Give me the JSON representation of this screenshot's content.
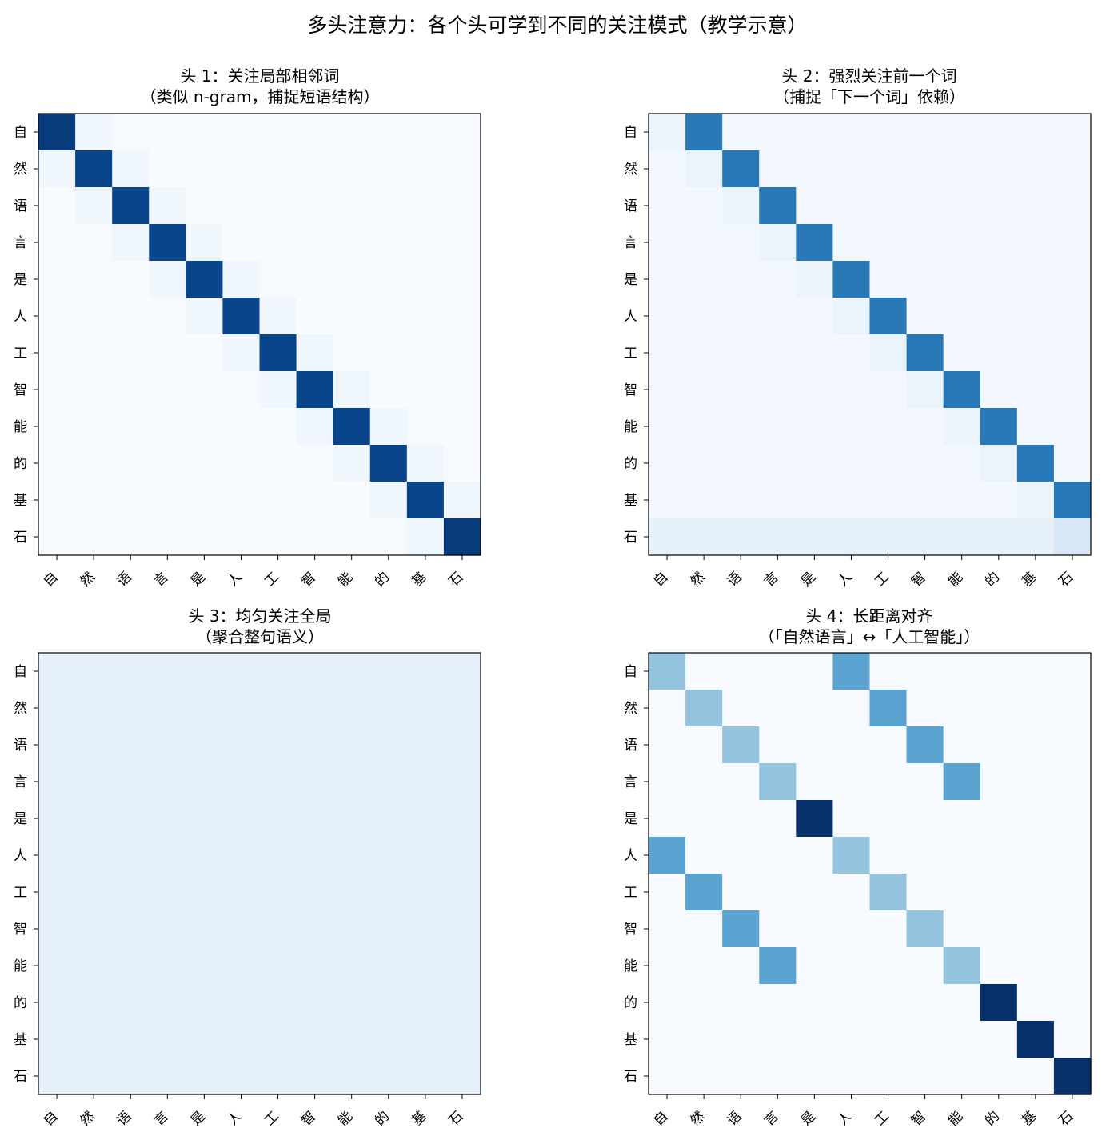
{
  "figure_title": "多头注意力：各个头可学到不同的关注模式（教学示意）",
  "chart_data": [
    {
      "type": "heatmap",
      "title": "头 1：关注局部相邻词",
      "subtitle": "（类似 n-gram，捕捉短语结构）",
      "colormap": "Blues",
      "vmin": 0,
      "vmax": 1,
      "x_labels": [
        "自",
        "然",
        "语",
        "言",
        "是",
        "人",
        "工",
        "智",
        "能",
        "的",
        "基",
        "石"
      ],
      "y_labels": [
        "自",
        "然",
        "语",
        "言",
        "是",
        "人",
        "工",
        "智",
        "能",
        "的",
        "基",
        "石"
      ],
      "matrix": [
        [
          0.96,
          0.04,
          0,
          0,
          0,
          0,
          0,
          0,
          0,
          0,
          0,
          0
        ],
        [
          0.04,
          0.92,
          0.04,
          0,
          0,
          0,
          0,
          0,
          0,
          0,
          0,
          0
        ],
        [
          0,
          0.04,
          0.92,
          0.04,
          0,
          0,
          0,
          0,
          0,
          0,
          0,
          0
        ],
        [
          0,
          0,
          0.04,
          0.92,
          0.04,
          0,
          0,
          0,
          0,
          0,
          0,
          0
        ],
        [
          0,
          0,
          0,
          0.04,
          0.92,
          0.04,
          0,
          0,
          0,
          0,
          0,
          0
        ],
        [
          0,
          0,
          0,
          0,
          0.04,
          0.92,
          0.04,
          0,
          0,
          0,
          0,
          0
        ],
        [
          0,
          0,
          0,
          0,
          0,
          0.04,
          0.92,
          0.04,
          0,
          0,
          0,
          0
        ],
        [
          0,
          0,
          0,
          0,
          0,
          0,
          0.04,
          0.92,
          0.04,
          0,
          0,
          0
        ],
        [
          0,
          0,
          0,
          0,
          0,
          0,
          0,
          0.04,
          0.92,
          0.04,
          0,
          0
        ],
        [
          0,
          0,
          0,
          0,
          0,
          0,
          0,
          0,
          0.04,
          0.92,
          0.04,
          0
        ],
        [
          0,
          0,
          0,
          0,
          0,
          0,
          0,
          0,
          0,
          0.04,
          0.92,
          0.04
        ],
        [
          0,
          0,
          0,
          0,
          0,
          0,
          0,
          0,
          0,
          0,
          0.04,
          0.96
        ]
      ]
    },
    {
      "type": "heatmap",
      "title": "头 2：强烈关注前一个词",
      "subtitle": "（捕捉「下一个词」依赖）",
      "colormap": "Blues",
      "vmin": 0,
      "vmax": 1,
      "x_labels": [
        "自",
        "然",
        "语",
        "言",
        "是",
        "人",
        "工",
        "智",
        "能",
        "的",
        "基",
        "石"
      ],
      "y_labels": [
        "自",
        "然",
        "语",
        "言",
        "是",
        "人",
        "工",
        "智",
        "能",
        "的",
        "基",
        "石"
      ],
      "matrix": [
        [
          0.06,
          0.72,
          0.02,
          0.02,
          0.02,
          0.02,
          0.02,
          0.02,
          0.02,
          0.02,
          0.02,
          0.02
        ],
        [
          0.02,
          0.06,
          0.72,
          0.02,
          0.02,
          0.02,
          0.02,
          0.02,
          0.02,
          0.02,
          0.02,
          0.02
        ],
        [
          0.02,
          0.02,
          0.06,
          0.72,
          0.02,
          0.02,
          0.02,
          0.02,
          0.02,
          0.02,
          0.02,
          0.02
        ],
        [
          0.02,
          0.02,
          0.02,
          0.06,
          0.72,
          0.02,
          0.02,
          0.02,
          0.02,
          0.02,
          0.02,
          0.02
        ],
        [
          0.02,
          0.02,
          0.02,
          0.02,
          0.06,
          0.72,
          0.02,
          0.02,
          0.02,
          0.02,
          0.02,
          0.02
        ],
        [
          0.02,
          0.02,
          0.02,
          0.02,
          0.02,
          0.06,
          0.72,
          0.02,
          0.02,
          0.02,
          0.02,
          0.02
        ],
        [
          0.02,
          0.02,
          0.02,
          0.02,
          0.02,
          0.02,
          0.06,
          0.72,
          0.02,
          0.02,
          0.02,
          0.02
        ],
        [
          0.02,
          0.02,
          0.02,
          0.02,
          0.02,
          0.02,
          0.02,
          0.06,
          0.72,
          0.02,
          0.02,
          0.02
        ],
        [
          0.02,
          0.02,
          0.02,
          0.02,
          0.02,
          0.02,
          0.02,
          0.02,
          0.06,
          0.72,
          0.02,
          0.02
        ],
        [
          0.02,
          0.02,
          0.02,
          0.02,
          0.02,
          0.02,
          0.02,
          0.02,
          0.02,
          0.06,
          0.72,
          0.02
        ],
        [
          0.02,
          0.02,
          0.02,
          0.02,
          0.02,
          0.02,
          0.02,
          0.02,
          0.02,
          0.02,
          0.06,
          0.72
        ],
        [
          0.08,
          0.08,
          0.08,
          0.08,
          0.08,
          0.08,
          0.08,
          0.08,
          0.08,
          0.08,
          0.08,
          0.16
        ]
      ]
    },
    {
      "type": "heatmap",
      "title": "头 3：均匀关注全局",
      "subtitle": "（聚合整句语义）",
      "colormap": "Blues",
      "vmin": 0,
      "vmax": 1,
      "x_labels": [
        "自",
        "然",
        "语",
        "言",
        "是",
        "人",
        "工",
        "智",
        "能",
        "的",
        "基",
        "石"
      ],
      "y_labels": [
        "自",
        "然",
        "语",
        "言",
        "是",
        "人",
        "工",
        "智",
        "能",
        "的",
        "基",
        "石"
      ],
      "matrix": [
        [
          0.083,
          0.083,
          0.083,
          0.083,
          0.083,
          0.083,
          0.083,
          0.083,
          0.083,
          0.083,
          0.083,
          0.083
        ],
        [
          0.083,
          0.083,
          0.083,
          0.083,
          0.083,
          0.083,
          0.083,
          0.083,
          0.083,
          0.083,
          0.083,
          0.083
        ],
        [
          0.083,
          0.083,
          0.083,
          0.083,
          0.083,
          0.083,
          0.083,
          0.083,
          0.083,
          0.083,
          0.083,
          0.083
        ],
        [
          0.083,
          0.083,
          0.083,
          0.083,
          0.083,
          0.083,
          0.083,
          0.083,
          0.083,
          0.083,
          0.083,
          0.083
        ],
        [
          0.083,
          0.083,
          0.083,
          0.083,
          0.083,
          0.083,
          0.083,
          0.083,
          0.083,
          0.083,
          0.083,
          0.083
        ],
        [
          0.083,
          0.083,
          0.083,
          0.083,
          0.083,
          0.083,
          0.083,
          0.083,
          0.083,
          0.083,
          0.083,
          0.083
        ],
        [
          0.083,
          0.083,
          0.083,
          0.083,
          0.083,
          0.083,
          0.083,
          0.083,
          0.083,
          0.083,
          0.083,
          0.083
        ],
        [
          0.083,
          0.083,
          0.083,
          0.083,
          0.083,
          0.083,
          0.083,
          0.083,
          0.083,
          0.083,
          0.083,
          0.083
        ],
        [
          0.083,
          0.083,
          0.083,
          0.083,
          0.083,
          0.083,
          0.083,
          0.083,
          0.083,
          0.083,
          0.083,
          0.083
        ],
        [
          0.083,
          0.083,
          0.083,
          0.083,
          0.083,
          0.083,
          0.083,
          0.083,
          0.083,
          0.083,
          0.083,
          0.083
        ],
        [
          0.083,
          0.083,
          0.083,
          0.083,
          0.083,
          0.083,
          0.083,
          0.083,
          0.083,
          0.083,
          0.083,
          0.083
        ],
        [
          0.083,
          0.083,
          0.083,
          0.083,
          0.083,
          0.083,
          0.083,
          0.083,
          0.083,
          0.083,
          0.083,
          0.083
        ]
      ]
    },
    {
      "type": "heatmap",
      "title": "头 4：长距离对齐",
      "subtitle": "（「自然语言」↔「人工智能」）",
      "colormap": "Blues",
      "vmin": 0,
      "vmax": 1,
      "x_labels": [
        "自",
        "然",
        "语",
        "言",
        "是",
        "人",
        "工",
        "智",
        "能",
        "的",
        "基",
        "石"
      ],
      "y_labels": [
        "自",
        "然",
        "语",
        "言",
        "是",
        "人",
        "工",
        "智",
        "能",
        "的",
        "基",
        "石"
      ],
      "matrix": [
        [
          0.4,
          0,
          0,
          0,
          0,
          0.55,
          0,
          0,
          0,
          0,
          0,
          0
        ],
        [
          0,
          0.4,
          0,
          0,
          0,
          0,
          0.55,
          0,
          0,
          0,
          0,
          0
        ],
        [
          0,
          0,
          0.4,
          0,
          0,
          0,
          0,
          0.55,
          0,
          0,
          0,
          0
        ],
        [
          0,
          0,
          0,
          0.4,
          0,
          0,
          0,
          0,
          0.55,
          0,
          0,
          0
        ],
        [
          0,
          0,
          0,
          0,
          1.0,
          0,
          0,
          0,
          0,
          0,
          0,
          0
        ],
        [
          0.55,
          0,
          0,
          0,
          0,
          0.4,
          0,
          0,
          0,
          0,
          0,
          0
        ],
        [
          0,
          0.55,
          0,
          0,
          0,
          0,
          0.4,
          0,
          0,
          0,
          0,
          0
        ],
        [
          0,
          0,
          0.55,
          0,
          0,
          0,
          0,
          0.4,
          0,
          0,
          0,
          0
        ],
        [
          0,
          0,
          0,
          0.55,
          0,
          0,
          0,
          0,
          0.4,
          0,
          0,
          0
        ],
        [
          0,
          0,
          0,
          0,
          0,
          0,
          0,
          0,
          0,
          1.0,
          0,
          0
        ],
        [
          0,
          0,
          0,
          0,
          0,
          0,
          0,
          0,
          0,
          0,
          1.0,
          0
        ],
        [
          0,
          0,
          0,
          0,
          0,
          0,
          0,
          0,
          0,
          0,
          0,
          1.0
        ]
      ]
    }
  ]
}
